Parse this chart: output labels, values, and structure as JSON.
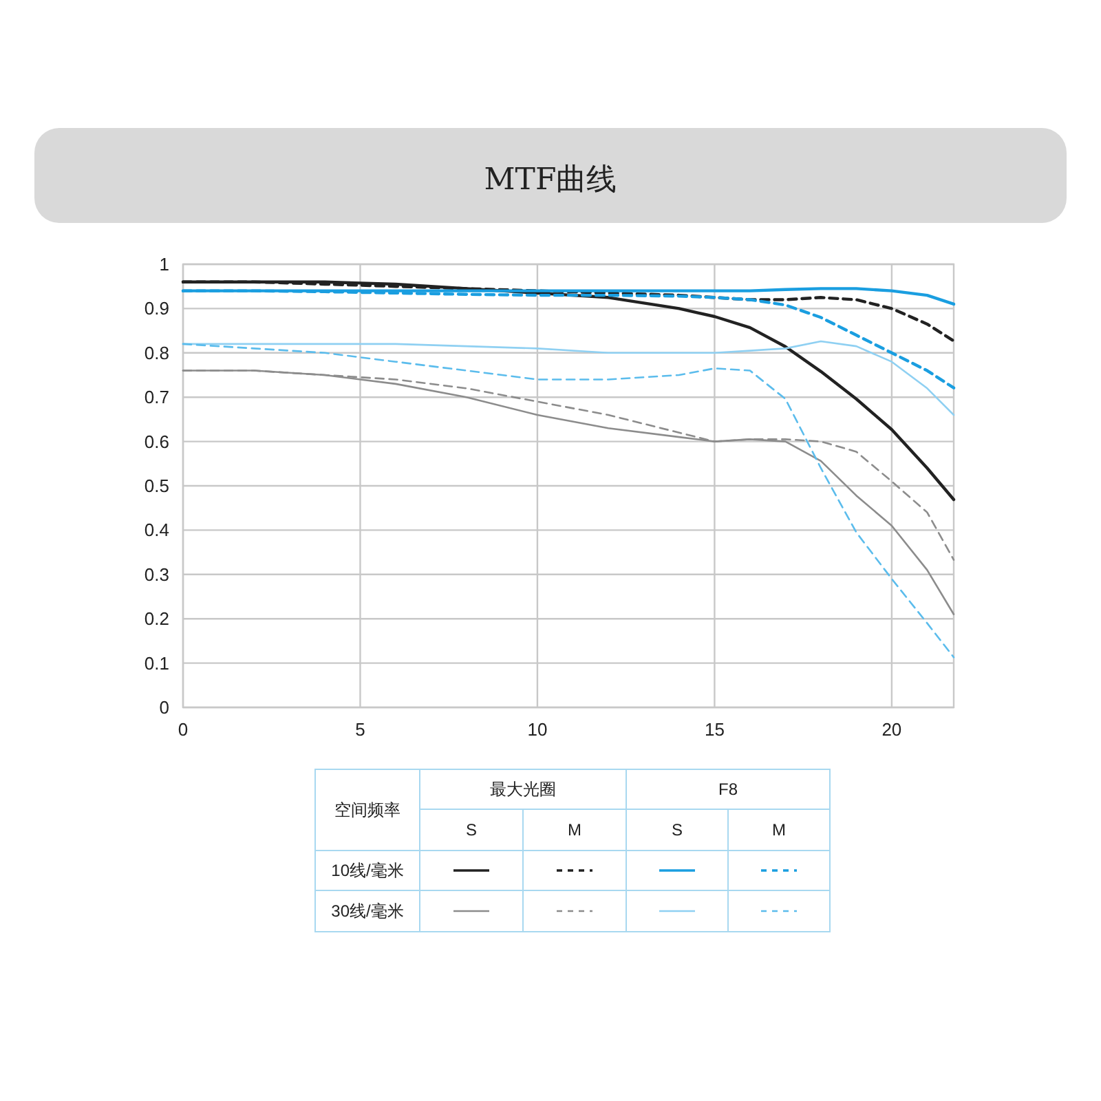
{
  "chart_data": {
    "type": "line",
    "title": "MTF曲线",
    "xlim": [
      0,
      21.75
    ],
    "xticks": [
      0,
      5,
      10,
      15,
      20
    ],
    "ylim": [
      0,
      1
    ],
    "yticks": [
      0,
      0.1,
      0.2,
      0.3,
      0.4,
      0.5,
      0.6,
      0.7,
      0.8,
      0.9,
      1
    ],
    "grid": true,
    "x": [
      0,
      2,
      4,
      6,
      8,
      10,
      12,
      14,
      15,
      16,
      17,
      18,
      19,
      20,
      21,
      21.75
    ],
    "series": [
      {
        "color": "#222222",
        "line_style": "solid",
        "values": [
          0.96,
          0.96,
          0.96,
          0.955,
          0.945,
          0.935,
          0.925,
          0.9,
          0.882,
          0.857,
          0.814,
          0.758,
          0.696,
          0.627,
          0.54,
          0.469
        ]
      },
      {
        "color": "#222222",
        "line_style": "dashed",
        "values": [
          0.96,
          0.96,
          0.955,
          0.95,
          0.945,
          0.94,
          0.935,
          0.93,
          0.925,
          0.92,
          0.92,
          0.925,
          0.92,
          0.9,
          0.865,
          0.827
        ]
      },
      {
        "color": "#1a9ee0",
        "line_style": "solid",
        "values": [
          0.94,
          0.94,
          0.94,
          0.94,
          0.94,
          0.94,
          0.94,
          0.94,
          0.94,
          0.94,
          0.943,
          0.945,
          0.945,
          0.94,
          0.93,
          0.91
        ]
      },
      {
        "color": "#1a9ee0",
        "line_style": "dashed",
        "values": [
          0.94,
          0.94,
          0.938,
          0.935,
          0.932,
          0.93,
          0.93,
          0.928,
          0.925,
          0.92,
          0.908,
          0.88,
          0.84,
          0.8,
          0.76,
          0.721
        ]
      },
      {
        "color": "#8c8c8c",
        "line_style": "solid",
        "values": [
          0.76,
          0.76,
          0.75,
          0.73,
          0.7,
          0.66,
          0.63,
          0.61,
          0.6,
          0.605,
          0.6,
          0.556,
          0.478,
          0.41,
          0.31,
          0.21
        ]
      },
      {
        "color": "#8c8c8c",
        "line_style": "dashed",
        "values": [
          0.76,
          0.76,
          0.75,
          0.74,
          0.72,
          0.69,
          0.66,
          0.62,
          0.6,
          0.605,
          0.605,
          0.6,
          0.577,
          0.51,
          0.44,
          0.333
        ]
      },
      {
        "color": "#8fd0f2",
        "line_style": "solid",
        "values": [
          0.82,
          0.82,
          0.82,
          0.82,
          0.815,
          0.81,
          0.8,
          0.8,
          0.8,
          0.805,
          0.81,
          0.826,
          0.815,
          0.78,
          0.72,
          0.66
        ]
      },
      {
        "color": "#5bbcec",
        "line_style": "dashed",
        "values": [
          0.82,
          0.81,
          0.8,
          0.78,
          0.76,
          0.74,
          0.74,
          0.75,
          0.765,
          0.76,
          0.696,
          0.54,
          0.395,
          0.29,
          0.19,
          0.113
        ]
      }
    ],
    "annotations": [
      "空间频率",
      "最大光圈",
      "F8",
      "S",
      "M",
      "S",
      "M",
      "10线/毫米",
      "30线/毫米"
    ]
  }
}
